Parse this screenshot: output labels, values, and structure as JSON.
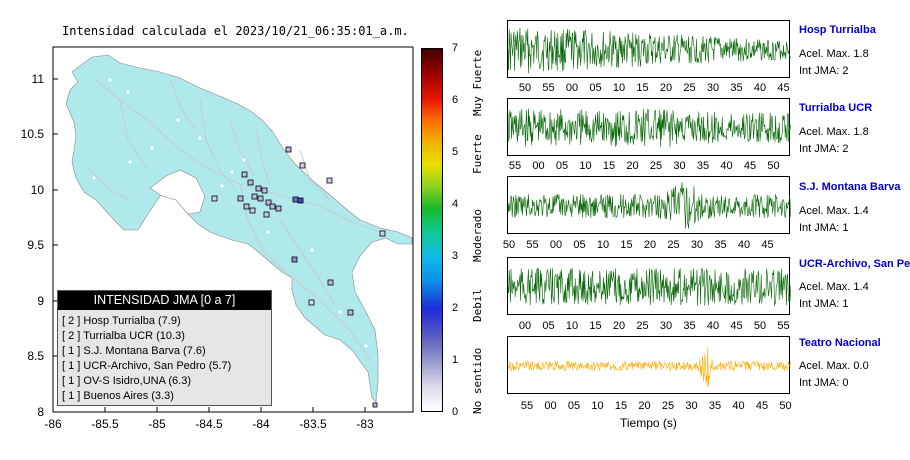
{
  "map": {
    "title": "Intensidad calculada el 2023/10/21_06:35:01_a.m.",
    "x_ticks": [
      "-86",
      "-85.5",
      "-85",
      "-84.5",
      "-84",
      "-83.5",
      "-83"
    ],
    "y_ticks": [
      "11",
      "10.5",
      "10",
      "9.5",
      "9",
      "8.5",
      "8"
    ],
    "land_color": "#b0e9ec",
    "sea_color": "#ffffff"
  },
  "legend": {
    "header": "INTENSIDAD JMA [0 a 7]",
    "items": [
      "[ 2 ]  Hosp Turrialba (7.9)",
      "[ 2 ]  Turrialba UCR (10.3)",
      "[ 1 ]  S.J. Montana Barva (7.6)",
      "[ 1 ]  UCR-Archivo, San Pedro (5.7)",
      "[ 1 ]  OV-S Isidro,UNA (6.3)",
      "[ 1 ]  Buenos Aires (3.3)"
    ]
  },
  "colorbar": {
    "ticks": [
      "7",
      "6",
      "5",
      "4",
      "3",
      "2",
      "1",
      "0"
    ],
    "categories": [
      "Muy Fuerte",
      "Fuerte",
      "Moderado",
      "Debil",
      "No sentido"
    ]
  },
  "panels": [
    {
      "name": "Hosp Turrialba",
      "acel": "Acel. Max. 1.8",
      "jma": "Int JMA: 2",
      "color": "#006400",
      "ticks": [
        "50",
        "55",
        "00",
        "05",
        "10",
        "15",
        "20",
        "25",
        "30",
        "35",
        "40",
        "45"
      ]
    },
    {
      "name": "Turrialba UCR",
      "acel": "Acel. Max. 1.8",
      "jma": "Int JMA: 2",
      "color": "#006400",
      "ticks": [
        "55",
        "00",
        "05",
        "10",
        "15",
        "20",
        "25",
        "30",
        "35",
        "40",
        "45",
        "50"
      ]
    },
    {
      "name": "S.J. Montana Barva",
      "acel": "Acel. Max. 1.4",
      "jma": "Int JMA: 1",
      "color": "#006400",
      "ticks": [
        "50",
        "55",
        "00",
        "05",
        "10",
        "15",
        "20",
        "25",
        "30",
        "35",
        "40",
        "45"
      ]
    },
    {
      "name": "UCR-Archivo, San Pedro",
      "acel": "Acel. Max. 1.4",
      "jma": "Int JMA: 1",
      "color": "#006400",
      "ticks": [
        "00",
        "05",
        "10",
        "15",
        "20",
        "25",
        "30",
        "35",
        "40",
        "45",
        "50",
        "55"
      ]
    },
    {
      "name": "Teatro Nacional",
      "acel": "Acel. Max. 0.0",
      "jma": "Int JMA: 0",
      "color": "#ffaa00",
      "ticks": [
        "55",
        "00",
        "05",
        "10",
        "15",
        "20",
        "25",
        "30",
        "35",
        "40",
        "45",
        "50"
      ]
    }
  ],
  "x_axis_label": "Tiempo (s)"
}
